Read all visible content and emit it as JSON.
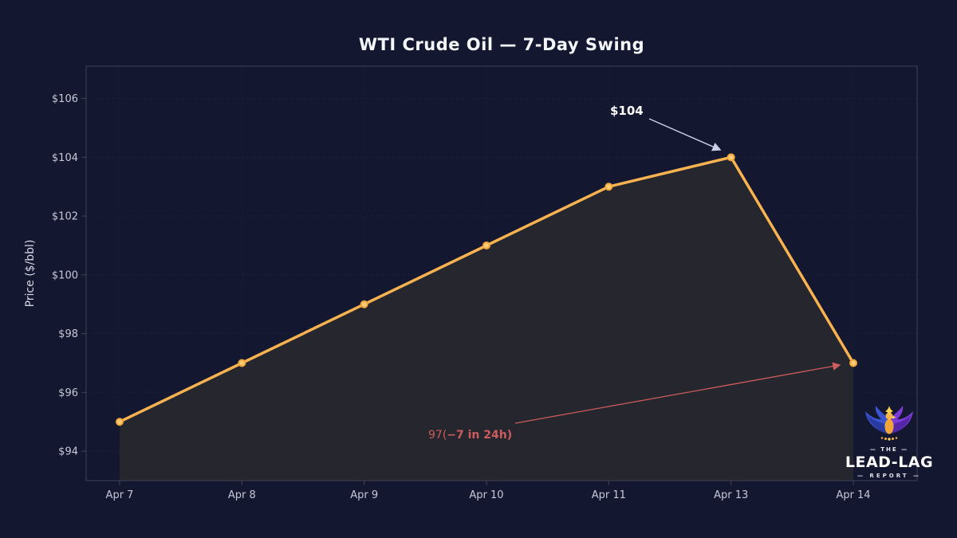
{
  "title": "WTI Crude Oil — 7-Day Swing",
  "chart_data": {
    "type": "line",
    "title": "WTI Crude Oil — 7-Day Swing",
    "xlabel": "",
    "ylabel": "Price ($/bbl)",
    "categories": [
      "Apr 7",
      "Apr 8",
      "Apr 9",
      "Apr 10",
      "Apr 11",
      "Apr 13",
      "Apr 14"
    ],
    "values": [
      95,
      97,
      99,
      101,
      103,
      104,
      97
    ],
    "ylim": [
      93,
      107.1
    ],
    "yticks": [
      94,
      96,
      98,
      100,
      102,
      104,
      106
    ],
    "ytick_labels": [
      "$94",
      "$96",
      "$98",
      "$100",
      "$102",
      "$104",
      "$106"
    ],
    "grid": true,
    "legend": false,
    "annotations": [
      {
        "text": "$104",
        "points_to": "Apr 13 peak at 104"
      },
      {
        "text": "97(−7 in 24h)",
        "points_to": "Apr 14 drop to 97"
      }
    ]
  },
  "annotations": {
    "peak": {
      "label": "$104"
    },
    "drop": {
      "prefix": "97(",
      "bold": "−7 in 24h)"
    }
  },
  "logo": {
    "the": "— THE —",
    "name": "LEAD-LAG",
    "report": "— REPORT —"
  },
  "colors": {
    "bg": "#131730",
    "title": "#f5f6fa",
    "line": "#f8b250",
    "marker_fill": "#ffca75",
    "marker_edge": "#f0a73c",
    "area_fill": "#25262e",
    "spine": "#3e4357",
    "tick_label": "#c6c9d8",
    "axis_label": "#d4d7e4",
    "anno_white": "#ffffff",
    "arrow_white": "#c9cfe9",
    "anno_red": "#cd5c5c"
  }
}
